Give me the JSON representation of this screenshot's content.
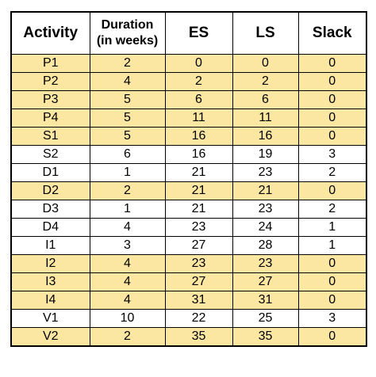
{
  "table": {
    "headers": {
      "activity": "Activity",
      "duration": "Duration\n(in weeks)",
      "es": "ES",
      "ls": "LS",
      "slack": "Slack"
    },
    "highlight_color": "#fbe7a1",
    "rows": [
      {
        "activity": "P1",
        "duration": "2",
        "es": "0",
        "ls": "0",
        "slack": "0",
        "highlighted": true
      },
      {
        "activity": "P2",
        "duration": "4",
        "es": "2",
        "ls": "2",
        "slack": "0",
        "highlighted": true
      },
      {
        "activity": "P3",
        "duration": "5",
        "es": "6",
        "ls": "6",
        "slack": "0",
        "highlighted": true
      },
      {
        "activity": "P4",
        "duration": "5",
        "es": "11",
        "ls": "11",
        "slack": "0",
        "highlighted": true
      },
      {
        "activity": "S1",
        "duration": "5",
        "es": "16",
        "ls": "16",
        "slack": "0",
        "highlighted": true
      },
      {
        "activity": "S2",
        "duration": "6",
        "es": "16",
        "ls": "19",
        "slack": "3",
        "highlighted": false
      },
      {
        "activity": "D1",
        "duration": "1",
        "es": "21",
        "ls": "23",
        "slack": "2",
        "highlighted": false
      },
      {
        "activity": "D2",
        "duration": "2",
        "es": "21",
        "ls": "21",
        "slack": "0",
        "highlighted": true
      },
      {
        "activity": "D3",
        "duration": "1",
        "es": "21",
        "ls": "23",
        "slack": "2",
        "highlighted": false
      },
      {
        "activity": "D4",
        "duration": "4",
        "es": "23",
        "ls": "24",
        "slack": "1",
        "highlighted": false
      },
      {
        "activity": "I1",
        "duration": "3",
        "es": "27",
        "ls": "28",
        "slack": "1",
        "highlighted": false
      },
      {
        "activity": "I2",
        "duration": "4",
        "es": "23",
        "ls": "23",
        "slack": "0",
        "highlighted": true
      },
      {
        "activity": "I3",
        "duration": "4",
        "es": "27",
        "ls": "27",
        "slack": "0",
        "highlighted": true
      },
      {
        "activity": "I4",
        "duration": "4",
        "es": "31",
        "ls": "31",
        "slack": "0",
        "highlighted": true
      },
      {
        "activity": "V1",
        "duration": "10",
        "es": "22",
        "ls": "25",
        "slack": "3",
        "highlighted": false
      },
      {
        "activity": "V2",
        "duration": "2",
        "es": "35",
        "ls": "35",
        "slack": "0",
        "highlighted": true
      }
    ]
  }
}
